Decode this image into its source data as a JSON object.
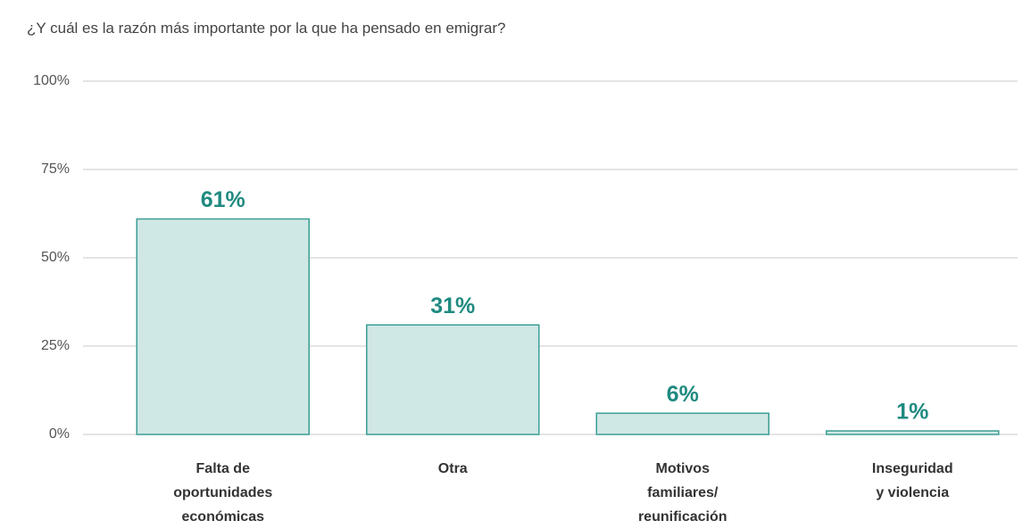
{
  "chart_data": {
    "type": "bar",
    "title": "¿Y cuál es la razón más importante por la que ha pensado en emigrar?",
    "categories": [
      "Falta de\noportunidades\neconómicas",
      "Otra",
      "Motivos\nfamiliares/\nreunificación",
      "Inseguridad\ny violencia"
    ],
    "values": [
      61,
      31,
      6,
      1
    ],
    "value_labels": [
      "61%",
      "31%",
      "6%",
      "1%"
    ],
    "color": "#cfe7e5",
    "ylim": [
      0,
      100
    ],
    "yticks": [
      {
        "value": 0,
        "label": "0%"
      },
      {
        "value": 25,
        "label": "25%"
      },
      {
        "value": 50,
        "label": "50%"
      },
      {
        "value": 75,
        "label": "75%"
      },
      {
        "value": 100,
        "label": "100%"
      }
    ],
    "grid": true
  }
}
